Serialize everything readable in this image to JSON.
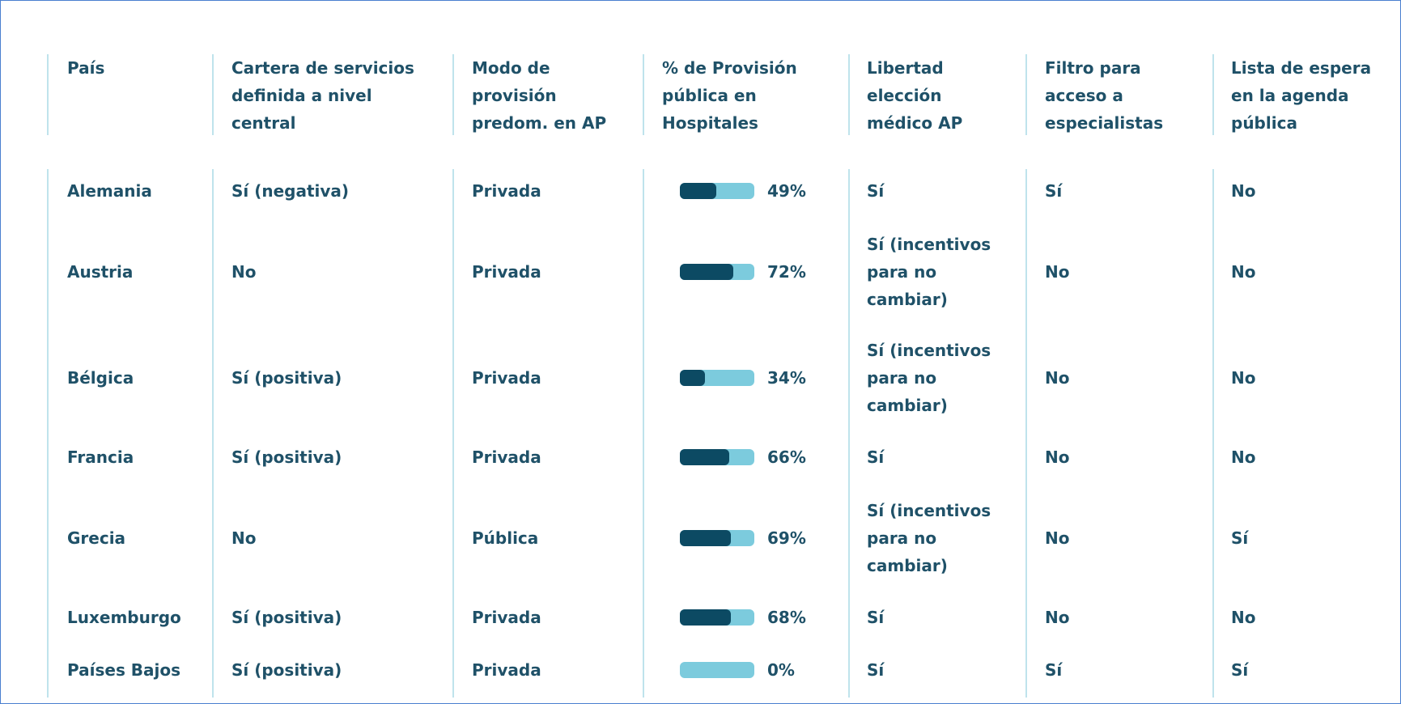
{
  "table": {
    "headers": [
      "País",
      "Cartera de servicios definida a nivel central",
      "Modo de provisión predom. en AP",
      "% de Provisión pública en Hospitales",
      "Libertad elección médico AP",
      "Filtro para acceso a especialistas",
      "Lista de espera en la agenda pública"
    ],
    "rows": [
      [
        "Alemania",
        "Sí (negativa)",
        "Privada",
        "Sí",
        "Sí",
        "No"
      ],
      [
        "Austria",
        "No",
        "Privada",
        "Sí (incentivos para no cambiar)",
        "No",
        "No"
      ],
      [
        "Bélgica",
        "Sí (positiva)",
        "Privada",
        "Sí (incentivos para no cambiar)",
        "No",
        "No"
      ],
      [
        "Francia",
        "Sí (positiva)",
        "Privada",
        "Sí",
        "No",
        "No"
      ],
      [
        "Grecia",
        "No",
        "Pública",
        "Sí (incentivos para no cambiar)",
        "No",
        "Sí"
      ],
      [
        "Luxemburgo",
        "Sí (positiva)",
        "Privada",
        "Sí",
        "No",
        "No"
      ],
      [
        "Países Bajos",
        "Sí (positiva)",
        "Privada",
        "Sí",
        "Sí",
        "Sí"
      ]
    ],
    "hospital_public_pct": {
      "values": [
        49,
        72,
        34,
        66,
        69,
        68,
        0
      ],
      "value_labels": [
        "49%",
        "72%",
        "34%",
        "66%",
        "69%",
        "68%",
        "0%"
      ],
      "colors": {
        "filled": "#0c4a63",
        "track": "#7ccbdd"
      }
    }
  }
}
